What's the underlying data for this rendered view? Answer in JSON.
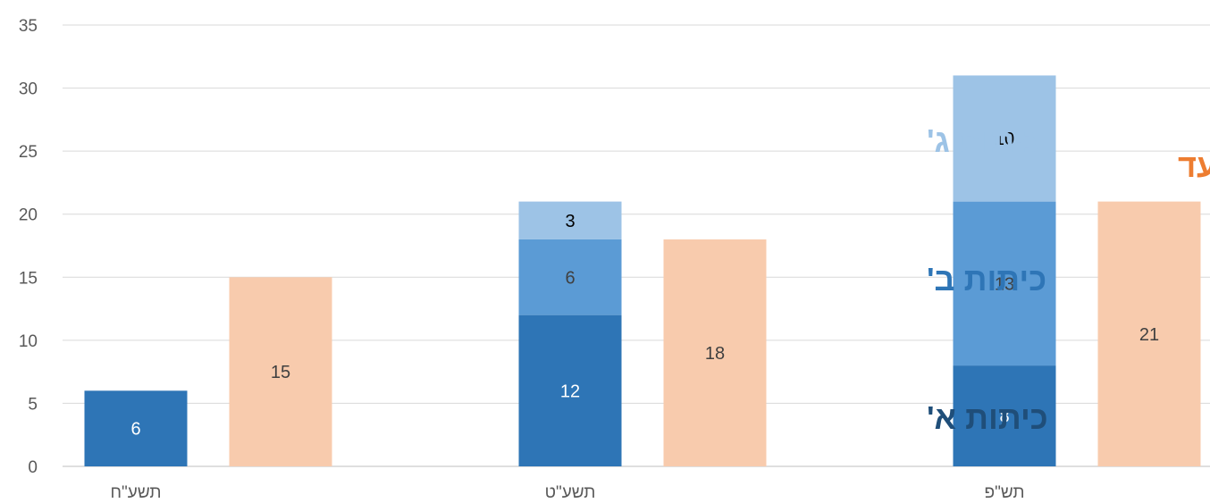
{
  "chart_data": {
    "type": "bar",
    "stacked": true,
    "categories": [
      "תשע\"ח",
      "תשע\"ט",
      "תש\"פ"
    ],
    "series": [
      {
        "key": "grade1",
        "name": "כיתות א'",
        "stack": "actual",
        "values": [
          6,
          12,
          8
        ],
        "color": "#2e75b6",
        "label_color": "#ffffff",
        "label_text": [
          "6",
          "12",
          "8"
        ]
      },
      {
        "key": "grade2",
        "name": "כיתות ב'",
        "stack": "actual",
        "values": [
          0,
          6,
          13
        ],
        "color": "#5b9bd5",
        "label_color": "#404040",
        "label_text": [
          "",
          "6",
          "13"
        ]
      },
      {
        "key": "grade3",
        "name": "כיתות ג'",
        "stack": "actual",
        "values": [
          0,
          3,
          10
        ],
        "color": "#9dc3e6",
        "label_color": "#000000",
        "label_text": [
          "",
          "3",
          "10"
        ]
      },
      {
        "key": "target",
        "name": "יעד",
        "stack": "target",
        "values": [
          15,
          18,
          21
        ],
        "color": "#f8cbad",
        "label_color": "#404040",
        "label_text": [
          "15",
          "18",
          "21"
        ]
      }
    ],
    "y_ticks": [
      "0",
      "5",
      "10",
      "15",
      "20",
      "25",
      "30",
      "35"
    ],
    "ylim": [
      0,
      35
    ],
    "grid": true,
    "legend": "inline annotations next to last category",
    "annotations": [
      {
        "text": "כיתות ג'",
        "color": "#9dc3e6"
      },
      {
        "text": "כיתות ב'",
        "color": "#2e75b6"
      },
      {
        "text": "כיתות א'",
        "color": "#1f4e79"
      },
      {
        "text": "יעד",
        "color": "#ed7d31"
      }
    ]
  }
}
